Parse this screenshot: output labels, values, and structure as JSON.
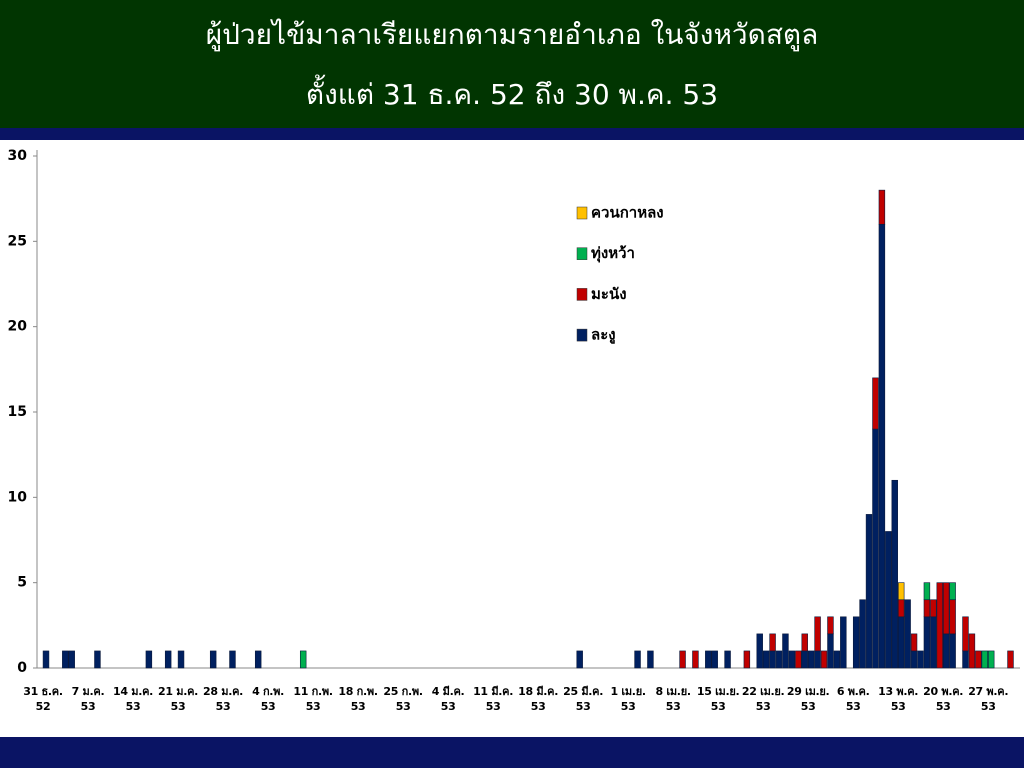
{
  "chart_data": {
    "type": "bar",
    "stacked": true,
    "title": "ผู้ป่วยไข้มาลาเรียแยกตามรายอำเภอ ในจังหวัดสตูล",
    "subtitle": "ตั้งแต่ 31 ธ.ค. 52 ถึง 30 พ.ค. 53",
    "categories": [
      "31 ธ.ค. 52",
      null,
      null,
      null,
      null,
      null,
      null,
      "7 ม.ค. 53",
      null,
      null,
      null,
      null,
      null,
      null,
      "14 ม.ค. 53",
      null,
      null,
      null,
      null,
      null,
      null,
      "21 ม.ค. 53",
      null,
      null,
      null,
      null,
      null,
      null,
      "28 ม.ค. 53",
      null,
      null,
      null,
      null,
      null,
      null,
      "4 ก.พ. 53",
      null,
      null,
      null,
      null,
      null,
      null,
      "11 ก.พ. 53",
      null,
      null,
      null,
      null,
      null,
      null,
      "18 ก.พ. 53",
      null,
      null,
      null,
      null,
      null,
      null,
      "25 ก.พ. 53",
      null,
      null,
      null,
      null,
      null,
      null,
      "4 มี.ค. 53",
      null,
      null,
      null,
      null,
      null,
      null,
      "11 มี.ค. 53",
      null,
      null,
      null,
      null,
      null,
      null,
      "18 มี.ค. 53",
      null,
      null,
      null,
      null,
      null,
      null,
      "25 มี.ค. 53",
      null,
      null,
      null,
      null,
      null,
      null,
      "1 เม.ย. 53",
      null,
      null,
      null,
      null,
      null,
      null,
      "8 เม.ย. 53",
      null,
      null,
      null,
      null,
      null,
      null,
      "15 เม.ย. 53",
      null,
      null,
      null,
      null,
      null,
      null,
      "22 เม.ย. 53",
      null,
      null,
      null,
      null,
      null,
      null,
      "29 เม.ย. 53",
      null,
      null,
      null,
      null,
      null,
      null,
      "6 พ.ค. 53",
      null,
      null,
      null,
      null,
      null,
      null,
      "13 พ.ค. 53",
      null,
      null,
      null,
      null,
      null,
      null,
      "20 พ.ค. 53",
      null,
      null,
      null,
      null,
      null,
      null,
      "27 พ.ค. 53",
      null,
      null,
      null
    ],
    "series": [
      {
        "name": "ควนกาหลง",
        "color": "#ffc000",
        "values": [
          0,
          0,
          0,
          0,
          0,
          0,
          0,
          0,
          0,
          0,
          0,
          0,
          0,
          0,
          0,
          0,
          0,
          0,
          0,
          0,
          0,
          0,
          0,
          0,
          0,
          0,
          0,
          0,
          0,
          0,
          0,
          0,
          0,
          0,
          0,
          0,
          0,
          0,
          0,
          0,
          0,
          0,
          0,
          0,
          0,
          0,
          0,
          0,
          0,
          0,
          0,
          0,
          0,
          0,
          0,
          0,
          0,
          0,
          0,
          0,
          0,
          0,
          0,
          0,
          0,
          0,
          0,
          0,
          0,
          0,
          0,
          0,
          0,
          0,
          0,
          0,
          0,
          0,
          0,
          0,
          0,
          0,
          0,
          0,
          0,
          0,
          0,
          0,
          0,
          0,
          0,
          0,
          0,
          0,
          0,
          0,
          0,
          0,
          0,
          0,
          0,
          0,
          0,
          0,
          0,
          0,
          0,
          0,
          0,
          0,
          0,
          0,
          0,
          0,
          0,
          0,
          0,
          0,
          0,
          0,
          0,
          0,
          0,
          0,
          0,
          0,
          0,
          0,
          0,
          0,
          0,
          0,
          0,
          1,
          0,
          0,
          0,
          0,
          0,
          0,
          0,
          0,
          0,
          0,
          0,
          0,
          0,
          0,
          0,
          0,
          0
        ]
      },
      {
        "name": "ทุ่งหว้า",
        "color": "#00b050",
        "values": [
          0,
          0,
          0,
          0,
          0,
          0,
          0,
          0,
          0,
          0,
          0,
          0,
          0,
          0,
          0,
          0,
          0,
          0,
          0,
          0,
          0,
          0,
          0,
          0,
          0,
          0,
          0,
          0,
          0,
          0,
          0,
          0,
          0,
          0,
          0,
          0,
          0,
          0,
          0,
          0,
          1,
          0,
          0,
          0,
          0,
          0,
          0,
          0,
          0,
          0,
          0,
          0,
          0,
          0,
          0,
          0,
          0,
          0,
          0,
          0,
          0,
          0,
          0,
          0,
          0,
          0,
          0,
          0,
          0,
          0,
          0,
          0,
          0,
          0,
          0,
          0,
          0,
          0,
          0,
          0,
          0,
          0,
          0,
          0,
          0,
          0,
          0,
          0,
          0,
          0,
          0,
          0,
          0,
          0,
          0,
          0,
          0,
          0,
          0,
          0,
          0,
          0,
          0,
          0,
          0,
          0,
          0,
          0,
          0,
          0,
          0,
          0,
          0,
          0,
          0,
          0,
          0,
          0,
          0,
          0,
          0,
          0,
          0,
          0,
          0,
          0,
          0,
          0,
          0,
          0,
          0,
          0,
          0,
          0,
          0,
          0,
          0,
          1,
          0,
          0,
          0,
          1,
          0,
          0,
          0,
          0,
          1,
          1,
          0,
          0,
          0
        ]
      },
      {
        "name": "มะนัง",
        "color": "#c00000",
        "values": [
          0,
          0,
          0,
          0,
          0,
          0,
          0,
          0,
          0,
          0,
          0,
          0,
          0,
          0,
          0,
          0,
          0,
          0,
          0,
          0,
          0,
          0,
          0,
          0,
          0,
          0,
          0,
          0,
          0,
          0,
          0,
          0,
          0,
          0,
          0,
          0,
          0,
          0,
          0,
          0,
          0,
          0,
          0,
          0,
          0,
          0,
          0,
          0,
          0,
          0,
          0,
          0,
          0,
          0,
          0,
          0,
          0,
          0,
          0,
          0,
          0,
          0,
          0,
          0,
          0,
          0,
          0,
          0,
          0,
          0,
          0,
          0,
          0,
          0,
          0,
          0,
          0,
          0,
          0,
          0,
          0,
          0,
          0,
          0,
          0,
          0,
          0,
          0,
          0,
          0,
          0,
          0,
          0,
          0,
          0,
          0,
          0,
          0,
          0,
          1,
          0,
          1,
          0,
          0,
          0,
          0,
          0,
          0,
          0,
          1,
          0,
          0,
          0,
          1,
          0,
          0,
          0,
          1,
          1,
          0,
          2,
          1,
          1,
          0,
          0,
          0,
          0,
          0,
          0,
          3,
          2,
          0,
          0,
          1,
          0,
          1,
          0,
          1,
          1,
          5,
          3,
          2,
          0,
          2,
          2,
          1,
          0,
          0,
          0,
          0,
          1
        ]
      },
      {
        "name": "ละงู",
        "color": "#002060",
        "values": [
          1,
          0,
          0,
          1,
          1,
          0,
          0,
          0,
          1,
          0,
          0,
          0,
          0,
          0,
          0,
          0,
          1,
          0,
          0,
          1,
          0,
          1,
          0,
          0,
          0,
          0,
          1,
          0,
          0,
          1,
          0,
          0,
          0,
          1,
          0,
          0,
          0,
          0,
          0,
          0,
          0,
          0,
          0,
          0,
          0,
          0,
          0,
          0,
          0,
          0,
          0,
          0,
          0,
          0,
          0,
          0,
          0,
          0,
          0,
          0,
          0,
          0,
          0,
          0,
          0,
          0,
          0,
          0,
          0,
          0,
          0,
          0,
          0,
          0,
          0,
          0,
          0,
          0,
          0,
          0,
          0,
          0,
          0,
          1,
          0,
          0,
          0,
          0,
          0,
          0,
          0,
          0,
          1,
          0,
          1,
          0,
          0,
          0,
          0,
          0,
          0,
          0,
          0,
          1,
          1,
          0,
          1,
          0,
          0,
          0,
          0,
          2,
          1,
          1,
          1,
          2,
          1,
          0,
          1,
          1,
          1,
          0,
          2,
          1,
          3,
          0,
          3,
          4,
          9,
          14,
          26,
          8,
          11,
          3,
          4,
          1,
          1,
          3,
          3,
          0,
          2,
          2,
          0,
          1,
          0,
          0,
          0,
          0,
          0,
          0,
          0
        ]
      }
    ],
    "ylim": [
      0,
      30
    ],
    "yticks": [
      0,
      5,
      10,
      15,
      20,
      25,
      30
    ],
    "grid": false,
    "legend": "top-right"
  }
}
